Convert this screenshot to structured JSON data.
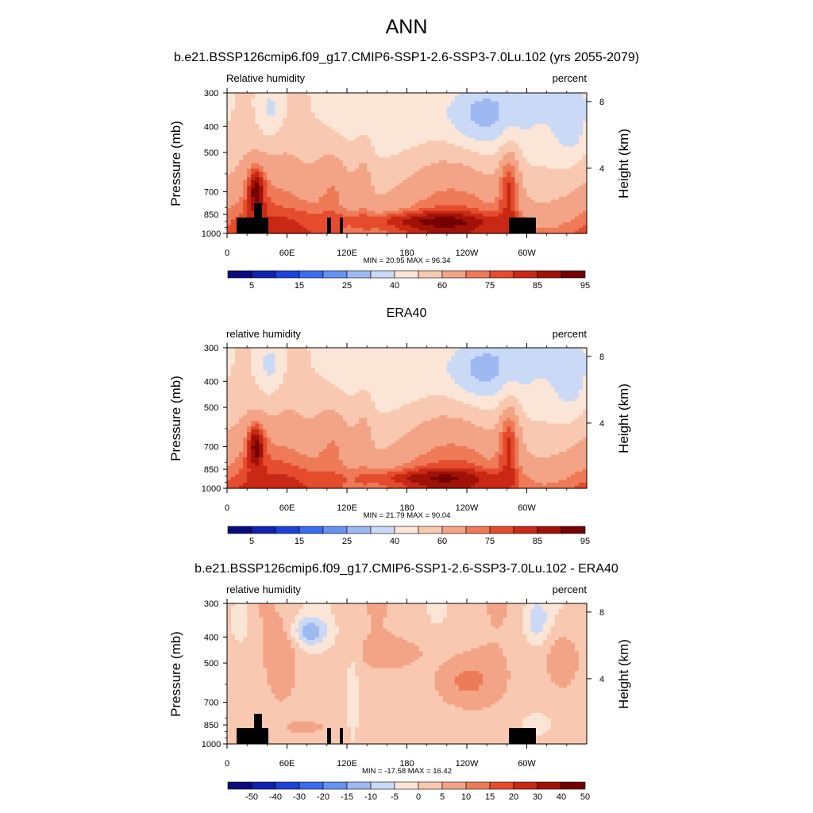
{
  "main_title": "ANN",
  "panels": [
    {
      "title": "b.e21.BSSP126cmip6.f09_g17.CMIP6-SSP1-2.6-SSP3-7.0Lu.102 (yrs 2055-2079)",
      "var_label": "Relative humidity",
      "units": "percent",
      "minmax": "MIN =  20.95  MAX =  96.34",
      "colorbar_labels": [
        "5",
        "15",
        "25",
        "40",
        "60",
        "75",
        "85",
        "95"
      ]
    },
    {
      "title": "ERA40",
      "var_label": "relative humidity",
      "units": "percent",
      "minmax": "MIN =  21.79  MAX =  90.04",
      "colorbar_labels": [
        "5",
        "15",
        "25",
        "40",
        "60",
        "75",
        "85",
        "95"
      ]
    },
    {
      "title": "b.e21.BSSP126cmip6.f09_g17.CMIP6-SSP1-2.6-SSP3-7.0Lu.102 - ERA40",
      "var_label": "relative humidity",
      "units": "percent",
      "minmax": "MIN = -17.58  MAX =  16.42",
      "colorbar_labels": [
        "-50",
        "-40",
        "-30",
        "-20",
        "-15",
        "-10",
        "-5",
        "0",
        "5",
        "10",
        "15",
        "20",
        "30",
        "40",
        "50"
      ]
    }
  ],
  "axes": {
    "ylabel": "Pressure (mb)",
    "y2label": "Height (km)",
    "pressure_ticks": [
      "300",
      "400",
      "500",
      "700",
      "850",
      "1000"
    ],
    "height_ticks": [
      "8",
      "4"
    ],
    "lon_ticks": [
      "0",
      "60E",
      "120E",
      "180",
      "120W",
      "60W"
    ]
  },
  "colors": {
    "full_field": [
      "#0a0c7d",
      "#0f22b0",
      "#1d43d9",
      "#3a6cf0",
      "#6792f2",
      "#9eb8f2",
      "#c9d9f6",
      "#fbe5d6",
      "#f8c9b0",
      "#f4a486",
      "#ee7a57",
      "#e54c2d",
      "#c82814",
      "#a01208",
      "#740000"
    ],
    "difference": [
      "#0a0c7d",
      "#0f22b0",
      "#1d43d9",
      "#3a6cf0",
      "#6792f2",
      "#9eb8f2",
      "#c9d9f6",
      "#fbe5d6",
      "#f8c9b0",
      "#f4a486",
      "#ee7a57",
      "#e54c2d",
      "#c82814",
      "#a01208",
      "#740000"
    ]
  },
  "chart_data": [
    {
      "type": "heatmap",
      "title": "b.e21.BSSP126cmip6.f09_g17.CMIP6-SSP1-2.6-SSP3-7.0Lu.102 (yrs 2055-2079)",
      "xlabel": "",
      "ylabel": "Pressure (mb)",
      "x_range": [
        0,
        360
      ],
      "y_range_mb": [
        1000,
        300
      ],
      "z_min": 20.95,
      "z_max": 96.34,
      "units": "percent",
      "contour_levels": [
        5,
        10,
        15,
        20,
        25,
        30,
        40,
        50,
        60,
        70,
        75,
        80,
        85,
        90,
        95
      ]
    },
    {
      "type": "heatmap",
      "title": "ERA40",
      "xlabel": "",
      "ylabel": "Pressure (mb)",
      "x_range": [
        0,
        360
      ],
      "y_range_mb": [
        1000,
        300
      ],
      "z_min": 21.79,
      "z_max": 90.04,
      "units": "percent",
      "contour_levels": [
        5,
        10,
        15,
        20,
        25,
        30,
        40,
        50,
        60,
        70,
        75,
        80,
        85,
        90,
        95
      ]
    },
    {
      "type": "heatmap",
      "title": "b.e21.BSSP126cmip6.f09_g17.CMIP6-SSP1-2.6-SSP3-7.0Lu.102 - ERA40",
      "xlabel": "",
      "ylabel": "Pressure (mb)",
      "x_range": [
        0,
        360
      ],
      "y_range_mb": [
        1000,
        300
      ],
      "z_min": -17.58,
      "z_max": 16.42,
      "units": "percent",
      "contour_levels": [
        -50,
        -40,
        -30,
        -20,
        -15,
        -10,
        -5,
        0,
        5,
        10,
        15,
        20,
        30,
        40,
        50
      ]
    }
  ]
}
